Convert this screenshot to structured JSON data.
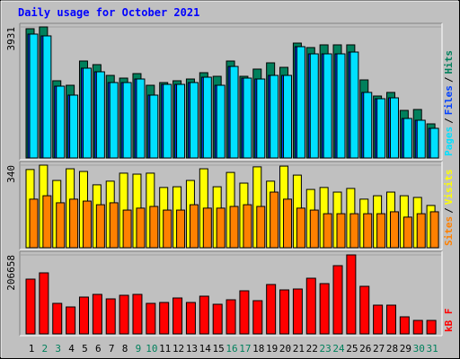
{
  "title": "Daily usage for October 2021",
  "legend_separator": "/",
  "chart_data": [
    {
      "type": "bar",
      "ylim": [
        0,
        3931
      ],
      "yticks": [
        3931
      ],
      "grid": true,
      "series": [
        {
          "name": "Pages",
          "color": "#00e0ff",
          "values": [
            3716,
            3662,
            2154,
            1885,
            2693,
            2585,
            2262,
            2262,
            2369,
            1885,
            2208,
            2208,
            2262,
            2423,
            2181,
            2746,
            2396,
            2369,
            2477,
            2477,
            3339,
            3123,
            3123,
            3123,
            3177,
            1966,
            1777,
            1804,
            1185,
            1131,
            889
          ]
        },
        {
          "name": "Files",
          "color": "#0040ff",
          "values": [
            3716,
            3662,
            2154,
            1885,
            2693,
            2585,
            2262,
            2262,
            2369,
            1885,
            2208,
            2208,
            2262,
            2423,
            2181,
            2746,
            2396,
            2369,
            2477,
            2477,
            3339,
            3123,
            3123,
            3123,
            3177,
            1966,
            1777,
            1804,
            1185,
            1131,
            889
          ]
        },
        {
          "name": "Hits",
          "color": "#00805c",
          "values": [
            3877,
            3931,
            2316,
            2181,
            2908,
            2800,
            2477,
            2396,
            2531,
            2181,
            2262,
            2316,
            2369,
            2558,
            2450,
            2908,
            2450,
            2666,
            2854,
            2719,
            3446,
            3312,
            3393,
            3393,
            3393,
            2342,
            1858,
            1966,
            1427,
            1454,
            1023
          ]
        }
      ]
    },
    {
      "type": "bar",
      "ylim": [
        0,
        340
      ],
      "yticks": [
        340
      ],
      "grid": true,
      "series": [
        {
          "name": "Sites",
          "color": "#ff8000",
          "values": [
            200,
            214,
            185,
            200,
            192,
            177,
            185,
            155,
            163,
            170,
            155,
            155,
            177,
            163,
            163,
            170,
            177,
            170,
            229,
            200,
            163,
            155,
            140,
            140,
            140,
            140,
            140,
            148,
            126,
            140,
            148
          ]
        },
        {
          "name": "Visits",
          "color": "#ffff00",
          "values": [
            322,
            340,
            277,
            325,
            314,
            259,
            274,
            307,
            303,
            307,
            248,
            251,
            277,
            325,
            251,
            310,
            266,
            333,
            274,
            336,
            299,
            240,
            248,
            229,
            244,
            200,
            214,
            229,
            214,
            207,
            174
          ]
        }
      ]
    },
    {
      "type": "bar",
      "ylim": [
        0,
        206658
      ],
      "yticks": [
        206658
      ],
      "grid": true,
      "categories": [
        "1",
        "2",
        "3",
        "4",
        "5",
        "6",
        "7",
        "8",
        "9",
        "10",
        "11",
        "12",
        "13",
        "14",
        "15",
        "16",
        "17",
        "18",
        "19",
        "20",
        "21",
        "22",
        "23",
        "24",
        "25",
        "26",
        "27",
        "28",
        "29",
        "30",
        "31"
      ],
      "category_colors": [
        "#000000",
        "#00805c",
        "#00805c",
        "#000000",
        "#000000",
        "#000000",
        "#000000",
        "#000000",
        "#00805c",
        "#00805c",
        "#000000",
        "#000000",
        "#000000",
        "#000000",
        "#000000",
        "#00805c",
        "#00805c",
        "#000000",
        "#000000",
        "#000000",
        "#000000",
        "#000000",
        "#00805c",
        "#00805c",
        "#000000",
        "#000000",
        "#000000",
        "#000000",
        "#000000",
        "#00805c",
        "#00805c"
      ],
      "series": [
        {
          "name": "kB F",
          "color": "#ff0000",
          "values": [
            143252,
            159691,
            79846,
            70452,
            96284,
            103330,
            91588,
            100981,
            103330,
            79846,
            82194,
            93936,
            82194,
            98633,
            77497,
            89239,
            112723,
            86891,
            129162,
            115072,
            117420,
            145601,
            131510,
            178478,
            206658,
            124465,
            75149,
            75149,
            44620,
            35226,
            35226
          ]
        }
      ]
    }
  ]
}
